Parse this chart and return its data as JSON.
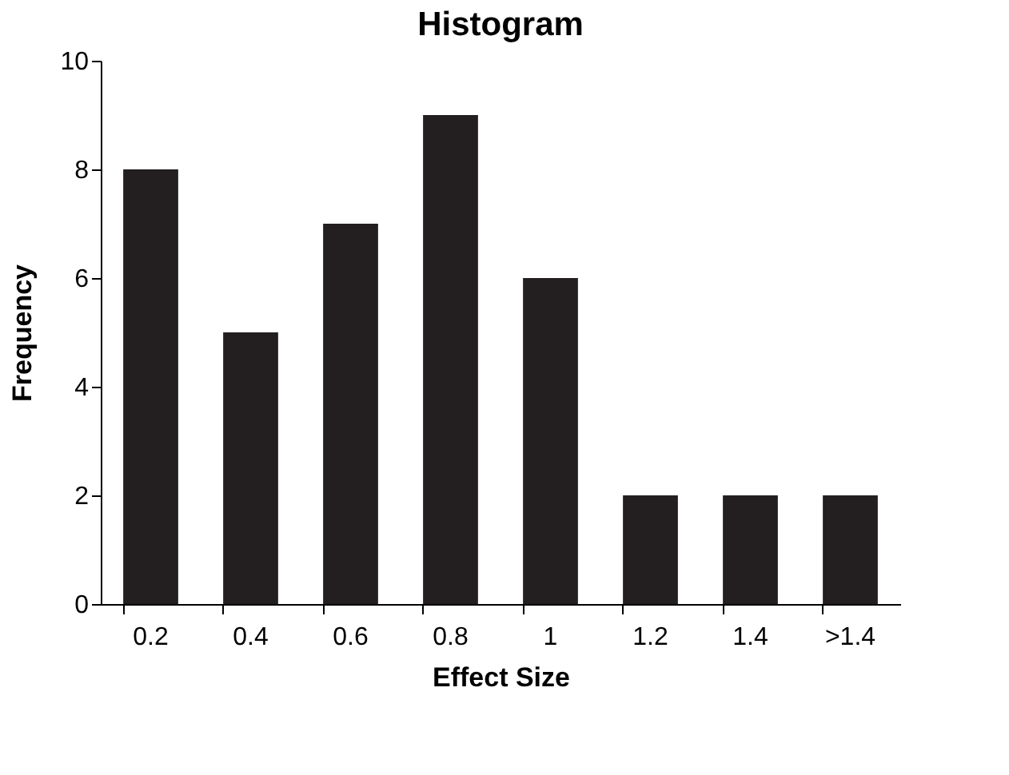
{
  "chart_data": {
    "type": "bar",
    "title": "Histogram",
    "xlabel": "Effect Size",
    "ylabel": "Frequency",
    "categories": [
      "0.2",
      "0.4",
      "0.6",
      "0.8",
      "1",
      "1.2",
      "1.4",
      ">1.4"
    ],
    "values": [
      8,
      5,
      7,
      9,
      6,
      2,
      2,
      2
    ],
    "color": "#231f20",
    "ylim": [
      0,
      10
    ],
    "yticks": [
      0,
      2,
      4,
      6,
      8,
      10
    ],
    "grid": false
  }
}
